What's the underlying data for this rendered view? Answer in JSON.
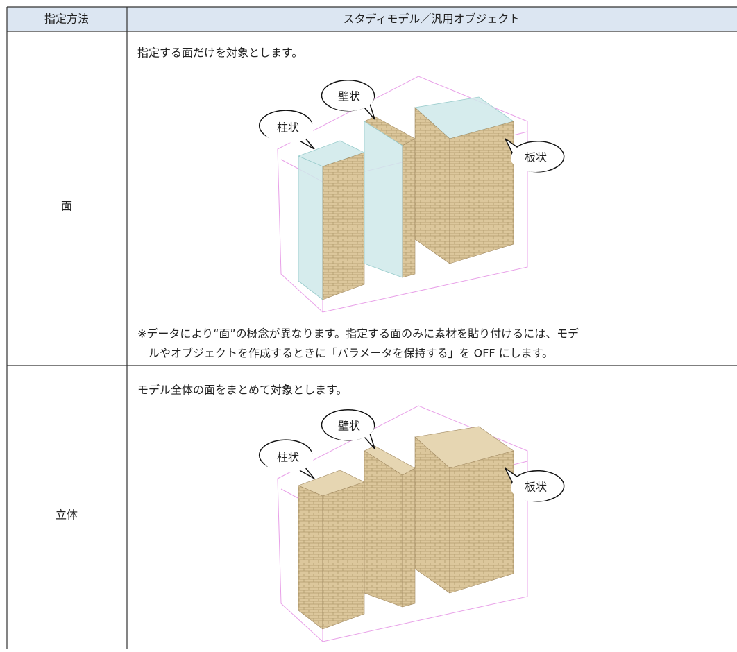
{
  "table": {
    "header": [
      "指定方法",
      "スタディモデル／汎用オブジェクト"
    ],
    "rows": [
      {
        "method": "面",
        "description": "指定する面だけを対象とします。",
        "labels": [
          "柱状",
          "壁状",
          "板状"
        ],
        "note": [
          "※データにより“面”の概念が異なります。指定する面のみに素材を貼り付けるには、モデ",
          "ルやオブジェクトを作成するときに「パラメータを保持する」を OFF にします。"
        ]
      },
      {
        "method": "立体",
        "description": "モデル全体の面をまとめて対象とします。",
        "labels": [
          "柱状",
          "壁状",
          "板状"
        ]
      }
    ]
  }
}
